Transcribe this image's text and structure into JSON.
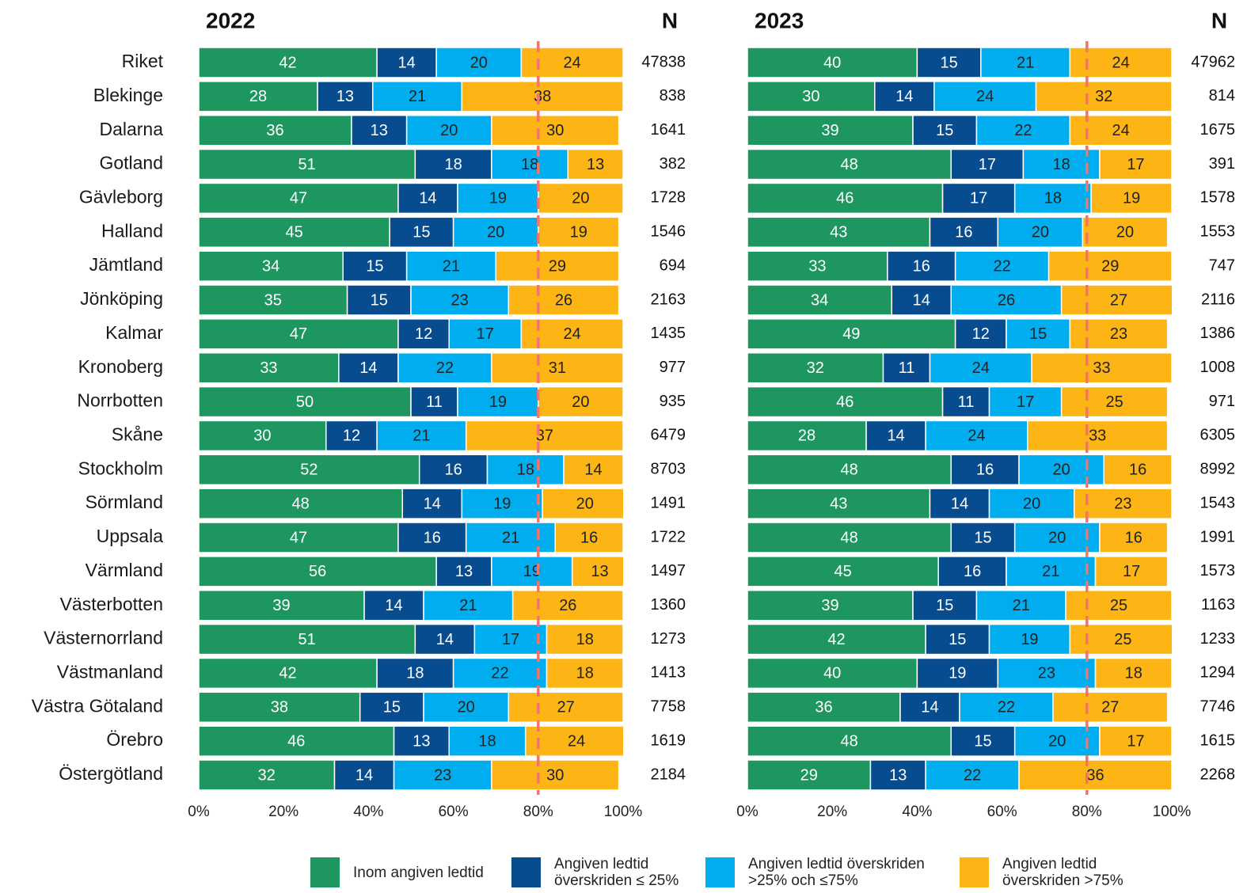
{
  "chart_data": [
    {
      "type": "stacked_barh",
      "title": "2022",
      "categories": [
        "Riket",
        "Blekinge",
        "Dalarna",
        "Gotland",
        "Gävleborg",
        "Halland",
        "Jämtland",
        "Jönköping",
        "Kalmar",
        "Kronoberg",
        "Norrbotten",
        "Skåne",
        "Stockholm",
        "Sörmland",
        "Uppsala",
        "Värmland",
        "Västerbotten",
        "Västernorrland",
        "Västmanland",
        "Västra Götaland",
        "Örebro",
        "Östergötland"
      ],
      "series": [
        {
          "name": "Inom angiven ledtid",
          "color": "#1e9660",
          "values": [
            42,
            28,
            36,
            51,
            47,
            45,
            34,
            35,
            47,
            33,
            50,
            30,
            52,
            48,
            47,
            56,
            39,
            51,
            42,
            38,
            46,
            32
          ]
        },
        {
          "name": "Angiven ledtid\növerskriden ≤ 25%",
          "color": "#064c8e",
          "values": [
            14,
            13,
            13,
            18,
            14,
            15,
            15,
            15,
            12,
            14,
            11,
            12,
            16,
            14,
            16,
            13,
            14,
            14,
            18,
            15,
            13,
            14
          ]
        },
        {
          "name": "Angiven ledtid överskriden\n>25% och ≤75%",
          "color": "#00adef",
          "values": [
            20,
            21,
            20,
            18,
            19,
            20,
            21,
            23,
            17,
            22,
            19,
            21,
            18,
            19,
            21,
            19,
            21,
            17,
            22,
            20,
            18,
            23
          ]
        },
        {
          "name": "Angiven ledtid\növerskriden >75%",
          "color": "#fdb515",
          "values": [
            24,
            38,
            30,
            13,
            20,
            19,
            29,
            26,
            24,
            31,
            20,
            37,
            14,
            20,
            16,
            13,
            26,
            18,
            18,
            27,
            24,
            30
          ]
        }
      ],
      "n_label": "N",
      "n_values": [
        47838,
        838,
        1641,
        382,
        1728,
        1546,
        694,
        2163,
        1435,
        977,
        935,
        6479,
        8703,
        1491,
        1722,
        1497,
        1360,
        1273,
        1413,
        7758,
        1619,
        2184
      ],
      "xlim": [
        0,
        100
      ],
      "xticks": [
        {
          "value": 0,
          "label": "0%"
        },
        {
          "value": 20,
          "label": "20%"
        },
        {
          "value": 40,
          "label": "40%"
        },
        {
          "value": 60,
          "label": "60%"
        },
        {
          "value": 80,
          "label": "80%"
        },
        {
          "value": 100,
          "label": "100%"
        }
      ],
      "reference_line": 80,
      "reference_color": "#f4736b"
    },
    {
      "type": "stacked_barh",
      "title": "2023",
      "series": [
        {
          "color": "#1e9660",
          "values": [
            40,
            30,
            39,
            48,
            46,
            43,
            33,
            34,
            49,
            32,
            46,
            28,
            48,
            43,
            48,
            45,
            39,
            42,
            40,
            36,
            48,
            29
          ]
        },
        {
          "color": "#064c8e",
          "values": [
            15,
            14,
            15,
            17,
            17,
            16,
            16,
            14,
            12,
            11,
            11,
            14,
            16,
            14,
            15,
            16,
            15,
            15,
            19,
            14,
            15,
            13
          ]
        },
        {
          "color": "#00adef",
          "values": [
            21,
            24,
            22,
            18,
            18,
            20,
            22,
            26,
            15,
            24,
            17,
            24,
            20,
            20,
            20,
            21,
            21,
            19,
            23,
            22,
            20,
            22
          ]
        },
        {
          "color": "#fdb515",
          "values": [
            24,
            32,
            24,
            17,
            19,
            20,
            29,
            27,
            23,
            33,
            25,
            33,
            16,
            23,
            16,
            17,
            25,
            25,
            18,
            27,
            17,
            36
          ]
        }
      ],
      "n_label": "N",
      "n_values": [
        47962,
        814,
        1675,
        391,
        1578,
        1553,
        747,
        2116,
        1386,
        1008,
        971,
        6305,
        8992,
        1543,
        1991,
        1573,
        1163,
        1233,
        1294,
        7746,
        1615,
        2268
      ],
      "xlim": [
        0,
        100
      ],
      "xticks": [
        {
          "value": 0,
          "label": "0%"
        },
        {
          "value": 20,
          "label": "20%"
        },
        {
          "value": 40,
          "label": "40%"
        },
        {
          "value": 60,
          "label": "60%"
        },
        {
          "value": 80,
          "label": "80%"
        },
        {
          "value": 100,
          "label": "100%"
        }
      ],
      "reference_line": 80,
      "reference_color": "#f4736b"
    }
  ]
}
